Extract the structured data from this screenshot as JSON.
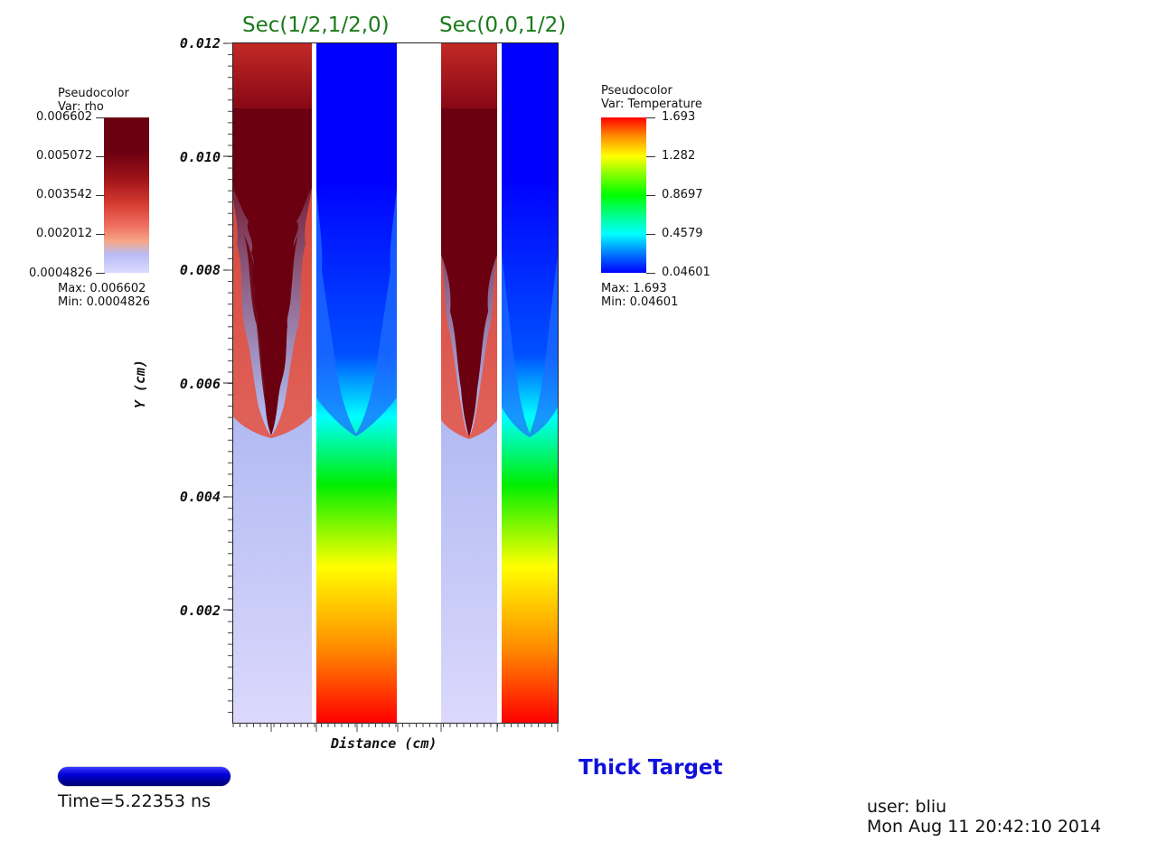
{
  "plot": {
    "sections": [
      "Sec(1/2,1/2,0)",
      "Sec(0,0,1/2)"
    ],
    "ylabel": "Y (cm)",
    "xlabel": "Distance (cm)",
    "yticks": [
      "0.012",
      "0.010",
      "0.008",
      "0.006",
      "0.004",
      "0.002"
    ]
  },
  "legend_rho": {
    "title_line1": "Pseudocolor",
    "title_line2": "Var: rho",
    "ticks": [
      "0.006602",
      "0.005072",
      "0.003542",
      "0.002012",
      "0.0004826"
    ],
    "max_text": "Max:  0.006602",
    "min_text": "Min:  0.0004826"
  },
  "legend_temp": {
    "title_line1": "Pseudocolor",
    "title_line2": "Var: Temperature",
    "ticks": [
      "1.693",
      "1.282",
      "0.8697",
      "0.4579",
      "0.04601"
    ],
    "max_text": "Max:  1.693",
    "min_text": "Min:  0.04601"
  },
  "time_text": "Time=5.22353 ns",
  "title": "Thick Target",
  "footer": {
    "user": "user: bliu",
    "date": "Mon Aug 11 20:42:10 2014"
  },
  "colors": {
    "section_label": "#1a7a1a",
    "title": "#1010dd",
    "rho_high": "#6a0010",
    "rho_low": "#dcdaff"
  }
}
